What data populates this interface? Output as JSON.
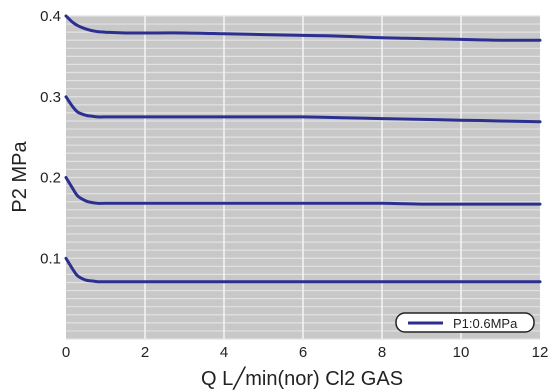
{
  "chart_data": {
    "type": "line",
    "xlabel": "Q L╱min(nor) Cl2 GAS",
    "ylabel": "P2 MPa",
    "xlim": [
      0,
      12
    ],
    "ylim": [
      0,
      0.4
    ],
    "x_ticks": [
      "0",
      "2",
      "4",
      "6",
      "8",
      "10",
      "12"
    ],
    "y_ticks": [
      "0.1",
      "0.2",
      "0.3",
      "0.4"
    ],
    "grid": true,
    "legend_position": "bottom-right",
    "legend_label": "P1:0.6MPa",
    "colors": {
      "line": "#2b2f8f",
      "plot_background": "#c8c8c8",
      "grid_minor": "#e2e2e2",
      "grid_major": "#f5f5f5"
    },
    "series": [
      {
        "x": [
          0,
          0.15,
          0.3,
          0.5,
          0.75,
          1.0,
          1.5,
          2,
          3,
          4,
          5,
          6,
          7,
          8,
          9,
          10,
          11,
          12
        ],
        "y": [
          0.4,
          0.393,
          0.388,
          0.384,
          0.381,
          0.38,
          0.379,
          0.379,
          0.379,
          0.378,
          0.377,
          0.376,
          0.375,
          0.373,
          0.372,
          0.371,
          0.37,
          0.37
        ]
      },
      {
        "x": [
          0,
          0.15,
          0.3,
          0.5,
          0.65,
          0.8,
          1,
          2,
          3,
          4,
          5,
          6,
          7,
          8,
          9,
          10,
          11,
          12
        ],
        "y": [
          0.3,
          0.289,
          0.281,
          0.277,
          0.276,
          0.275,
          0.275,
          0.275,
          0.275,
          0.275,
          0.275,
          0.275,
          0.274,
          0.273,
          0.272,
          0.271,
          0.27,
          0.269
        ]
      },
      {
        "x": [
          0,
          0.15,
          0.3,
          0.5,
          0.65,
          0.8,
          1,
          2,
          3,
          4,
          5,
          6,
          7,
          8,
          9,
          10,
          11,
          12
        ],
        "y": [
          0.2,
          0.188,
          0.177,
          0.171,
          0.169,
          0.168,
          0.168,
          0.168,
          0.168,
          0.168,
          0.168,
          0.168,
          0.168,
          0.168,
          0.167,
          0.167,
          0.167,
          0.167
        ]
      },
      {
        "x": [
          0,
          0.15,
          0.3,
          0.5,
          0.65,
          0.8,
          1,
          2,
          3,
          4,
          5,
          6,
          7,
          8,
          9,
          10,
          11,
          12
        ],
        "y": [
          0.1,
          0.088,
          0.078,
          0.073,
          0.072,
          0.071,
          0.071,
          0.071,
          0.071,
          0.071,
          0.071,
          0.071,
          0.071,
          0.071,
          0.071,
          0.071,
          0.071,
          0.071
        ]
      }
    ]
  }
}
